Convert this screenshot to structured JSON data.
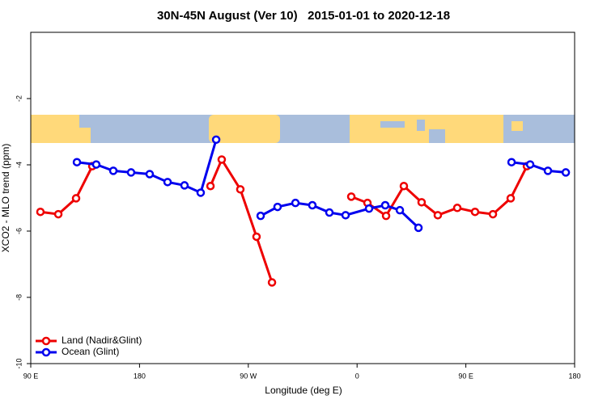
{
  "chart_data": {
    "type": "line",
    "title": "30N-45N August (Ver 10)   2015-01-01 to 2020-12-18",
    "x_label": "Longitude (deg E)",
    "y_label": "XCO2 - MLO trend (ppm)",
    "xlim": [
      90,
      540
    ],
    "xticks": [
      {
        "value": 90,
        "label": "90 E"
      },
      180,
      {
        "value": 270,
        "label": "90 W"
      },
      {
        "value": 360,
        "label": "0"
      },
      {
        "value": 450,
        "label": "90 E"
      },
      {
        "value": 540,
        "label": "180"
      }
    ],
    "ylim": [
      -10,
      0
    ],
    "yticks": [
      -10,
      -8,
      -6,
      -4,
      -2
    ],
    "legend": "bottom-left",
    "series": [
      {
        "name": "Land (Nadir&Glint)",
        "color": "#ee0000",
        "x": [
          98.0,
          112.8,
          127.5,
          140.9,
          null,
          238.7,
          248.0,
          263.4,
          276.8,
          289.6,
          null,
          355.2,
          368.6,
          384.0,
          398.7,
          413.4,
          426.8,
          442.9,
          457.6,
          472.4,
          487.1,
          500.5
        ],
        "values": [
          -5.42,
          -5.49,
          -5.01,
          -4.04,
          null,
          -4.64,
          -3.84,
          -4.74,
          -6.17,
          -7.55,
          null,
          -4.96,
          -5.15,
          -5.54,
          -4.64,
          -5.13,
          -5.52,
          -5.3,
          -5.42,
          -5.49,
          -5.01,
          -4.04
        ]
      },
      {
        "name": "Ocean (Glint)",
        "color": "#0000ee",
        "x": [
          128.2,
          144.2,
          158.3,
          173.0,
          188.4,
          203.2,
          217.2,
          230.6,
          243.4,
          null,
          280.2,
          294.2,
          309.0,
          323.0,
          337.1,
          350.5,
          369.9,
          383.3,
          395.4,
          410.8,
          null,
          487.8,
          503.2,
          517.9,
          532.7
        ],
        "values": [
          -3.92,
          -3.99,
          -4.18,
          -4.23,
          -4.28,
          -4.52,
          -4.62,
          -4.84,
          -3.24,
          null,
          -5.54,
          -5.27,
          -5.15,
          -5.22,
          -5.44,
          -5.52,
          -5.32,
          -5.22,
          -5.37,
          -5.9,
          null,
          -3.92,
          -3.99,
          -4.18,
          -4.23
        ]
      }
    ]
  }
}
